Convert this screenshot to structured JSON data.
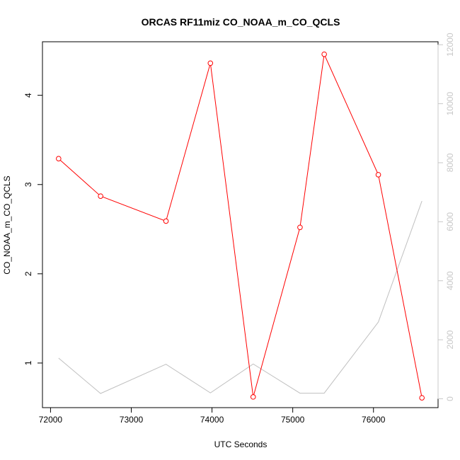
{
  "chart_data": {
    "type": "line",
    "title": "ORCAS RF11miz CO_NOAA_m_CO_QCLS",
    "xlabel": "UTC Seconds",
    "ylabel": "CO_NOAA_m_CO_QCLS",
    "xlim": [
      71900,
      76800
    ],
    "ylim": [
      0.5,
      4.6
    ],
    "y2lim": [
      -300,
      12100
    ],
    "x_ticks": [
      72000,
      73000,
      74000,
      75000,
      76000
    ],
    "x_tick_labels": [
      "72000",
      "73000",
      "74000",
      "75000",
      "76000"
    ],
    "y_ticks": [
      1,
      2,
      3,
      4
    ],
    "y_tick_labels": [
      "1",
      "2",
      "3",
      "4"
    ],
    "y2_ticks": [
      0,
      2000,
      4000,
      6000,
      8000,
      10000,
      12000
    ],
    "y2_tick_labels": [
      "0",
      "2000",
      "4000",
      "6000",
      "8000",
      "10000",
      "12000"
    ],
    "grid": false,
    "series": [
      {
        "color": "#ff0000",
        "axis": "left",
        "markers": true,
        "x": [
          72100,
          72620,
          73430,
          73980,
          74510,
          75090,
          75390,
          76060,
          76600
        ],
        "y": [
          3.29,
          2.87,
          2.59,
          4.36,
          0.62,
          2.52,
          4.46,
          3.11,
          0.61
        ]
      },
      {
        "color": "#c0c0c0",
        "axis": "right",
        "markers": false,
        "x": [
          72100,
          72620,
          73430,
          73980,
          74510,
          75090,
          75390,
          76060,
          76600
        ],
        "y": [
          1380,
          180,
          1170,
          200,
          1180,
          190,
          190,
          2600,
          6700
        ]
      }
    ]
  }
}
